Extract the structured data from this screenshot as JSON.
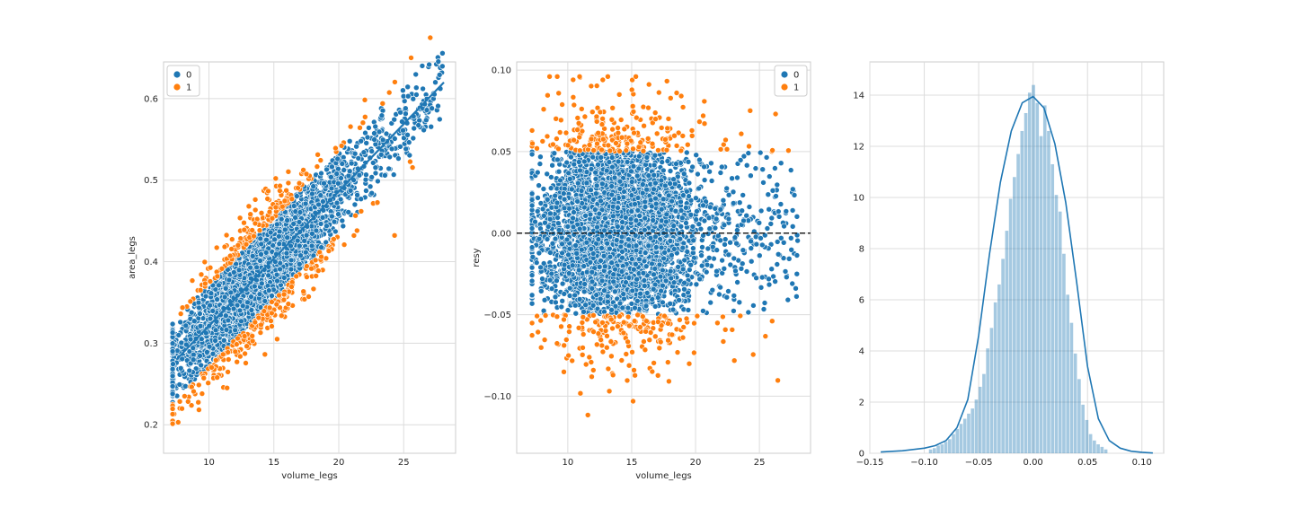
{
  "colors": {
    "class0": "#1f77b4",
    "class1": "#ff7f0e",
    "hist": "#1f77b4",
    "grid": "#dcdcdc",
    "spine": "#cccccc"
  },
  "chart_data": [
    {
      "type": "scatter",
      "xlabel": "volume_legs",
      "ylabel": "area_legs",
      "xlim": [
        6.5,
        29
      ],
      "ylim": [
        0.165,
        0.645
      ],
      "xticks": [
        10,
        15,
        20,
        25
      ],
      "yticks": [
        0.2,
        0.3,
        0.4,
        0.5,
        0.6
      ],
      "legend": {
        "placement": "top-left",
        "entries": [
          "0",
          "1"
        ]
      },
      "grid": true,
      "series": [
        {
          "name": "0",
          "color": "#1f77b4",
          "description_points": [
            [
              7.0,
              0.327
            ],
            [
              8,
              0.3
            ],
            [
              10,
              0.34
            ],
            [
              12,
              0.37
            ],
            [
              15,
              0.4
            ],
            [
              18,
              0.44
            ],
            [
              20,
              0.47
            ],
            [
              22,
              0.5
            ],
            [
              24,
              0.53
            ],
            [
              25,
              0.55
            ],
            [
              27,
              0.55
            ]
          ]
        },
        {
          "name": "1",
          "color": "#ff7f0e",
          "description_points": [
            [
              8.3,
              0.185
            ],
            [
              8.5,
              0.25
            ],
            [
              10,
              0.27
            ],
            [
              10,
              0.4
            ],
            [
              12,
              0.3
            ],
            [
              12,
              0.43
            ],
            [
              15,
              0.33
            ],
            [
              15,
              0.47
            ],
            [
              18,
              0.5
            ],
            [
              20,
              0.38
            ],
            [
              22,
              0.6
            ],
            [
              22,
              0.45
            ],
            [
              25,
              0.45
            ],
            [
              27,
              0.48
            ],
            [
              28,
              0.55
            ]
          ]
        }
      ],
      "regression_line": {
        "x": [
          7.5,
          28.1
        ],
        "y": [
          0.28,
          0.62
        ]
      }
    },
    {
      "type": "scatter",
      "xlabel": "volume_legs",
      "ylabel": "resy",
      "xlim": [
        6.0,
        29
      ],
      "ylim": [
        -0.135,
        0.105
      ],
      "xticks": [
        10,
        15,
        20,
        25
      ],
      "yticks": [
        -0.1,
        -0.05,
        0.0,
        0.05,
        0.1
      ],
      "ytick_labels": [
        "−0.10",
        "−0.05",
        "0.00",
        "0.05",
        "0.10"
      ],
      "legend": {
        "placement": "top-right",
        "entries": [
          "0",
          "1"
        ]
      },
      "grid": true,
      "hline": {
        "y": 0.0,
        "style": "dashed",
        "color": "#222222"
      },
      "series": [
        {
          "name": "0",
          "color": "#1f77b4",
          "y_band": [
            -0.05,
            0.05
          ]
        },
        {
          "name": "1",
          "color": "#ff7f0e",
          "y_band_outside": [
            -0.125,
            0.095
          ]
        }
      ]
    },
    {
      "type": "bar",
      "subtype": "histogram_with_kde",
      "xlim": [
        -0.15,
        0.12
      ],
      "ylim": [
        0,
        15.3
      ],
      "xticks": [
        -0.15,
        -0.1,
        -0.05,
        0.0,
        0.05,
        0.1
      ],
      "xtick_labels": [
        "−0.15",
        "−0.10",
        "−0.05",
        "0.00",
        "0.05",
        "0.10"
      ],
      "yticks": [
        0,
        2,
        4,
        6,
        8,
        10,
        12,
        14
      ],
      "grid": true,
      "bin_edges_start": -0.0957,
      "bin_width": 0.0035,
      "values": [
        0.15,
        0.2,
        0.3,
        0.35,
        0.45,
        0.55,
        0.75,
        0.95,
        1.15,
        1.35,
        1.55,
        1.75,
        2.1,
        2.6,
        3.1,
        4.1,
        4.9,
        5.9,
        6.6,
        7.6,
        8.7,
        9.95,
        10.8,
        11.7,
        12.6,
        13.3,
        14.1,
        14.4,
        13.7,
        12.4,
        13.6,
        12.6,
        11.3,
        10.1,
        9.45,
        7.8,
        6.2,
        5.1,
        3.9,
        2.9,
        1.9,
        1.3,
        0.75,
        0.5,
        0.35,
        0.25,
        0.15
      ],
      "kde": {
        "x": [
          -0.14,
          -0.12,
          -0.1,
          -0.09,
          -0.08,
          -0.07,
          -0.06,
          -0.05,
          -0.04,
          -0.03,
          -0.02,
          -0.01,
          0.0,
          0.01,
          0.02,
          0.03,
          0.04,
          0.05,
          0.06,
          0.07,
          0.08,
          0.09,
          0.1,
          0.11
        ],
        "y": [
          0.05,
          0.1,
          0.2,
          0.3,
          0.5,
          1.0,
          2.1,
          4.6,
          7.8,
          10.6,
          12.6,
          13.7,
          13.95,
          13.5,
          12.1,
          9.8,
          6.7,
          3.4,
          1.35,
          0.5,
          0.2,
          0.08,
          0.04,
          0.01
        ]
      }
    }
  ]
}
